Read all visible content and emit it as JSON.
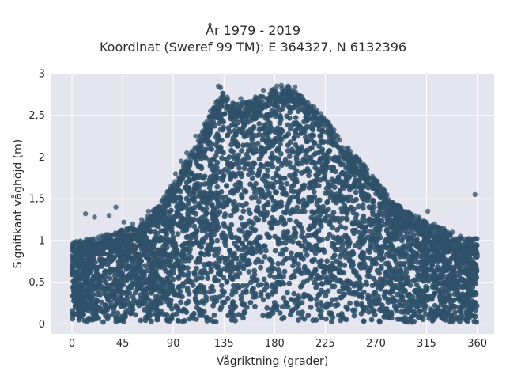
{
  "chart_data": {
    "type": "scatter",
    "title_lines": [
      "År 1979 - 2019",
      "Koordinat (Sweref 99 TM): E 364327, N 6132396"
    ],
    "xlabel": "Vågriktning (grader)",
    "ylabel": "Signifikant våghöjd (m)",
    "xlim": [
      -19,
      375
    ],
    "ylim": [
      -0.12,
      3
    ],
    "x_ticks": [
      0,
      45,
      90,
      135,
      180,
      225,
      270,
      315,
      360
    ],
    "x_tick_labels": [
      "0",
      "45",
      "90",
      "135",
      "180",
      "225",
      "270",
      "315",
      "360"
    ],
    "y_ticks": [
      0,
      0.5,
      1,
      1.5,
      2,
      2.5,
      3
    ],
    "y_tick_labels": [
      "0",
      "0,5",
      "1",
      "1,5",
      "2",
      "2,5",
      "3"
    ],
    "grid": true,
    "colors": {
      "background": "#e5e5ef",
      "grid": "#ffffff",
      "marker": "#2f5069"
    },
    "envelope": [
      {
        "x": 0,
        "y": 0.9
      },
      {
        "x": 20,
        "y": 0.95
      },
      {
        "x": 45,
        "y": 1.05
      },
      {
        "x": 60,
        "y": 1.1
      },
      {
        "x": 80,
        "y": 1.4
      },
      {
        "x": 100,
        "y": 1.85
      },
      {
        "x": 115,
        "y": 2.2
      },
      {
        "x": 125,
        "y": 2.5
      },
      {
        "x": 133,
        "y": 2.7
      },
      {
        "x": 145,
        "y": 2.55
      },
      {
        "x": 160,
        "y": 2.6
      },
      {
        "x": 180,
        "y": 2.75
      },
      {
        "x": 195,
        "y": 2.75
      },
      {
        "x": 210,
        "y": 2.6
      },
      {
        "x": 225,
        "y": 2.4
      },
      {
        "x": 240,
        "y": 2.1
      },
      {
        "x": 255,
        "y": 1.9
      },
      {
        "x": 270,
        "y": 1.65
      },
      {
        "x": 285,
        "y": 1.4
      },
      {
        "x": 300,
        "y": 1.25
      },
      {
        "x": 315,
        "y": 1.15
      },
      {
        "x": 330,
        "y": 1.05
      },
      {
        "x": 345,
        "y": 0.95
      },
      {
        "x": 360,
        "y": 0.95
      }
    ],
    "outliers": [
      {
        "x": 12,
        "y": 1.32
      },
      {
        "x": 20,
        "y": 1.28
      },
      {
        "x": 33,
        "y": 1.3
      },
      {
        "x": 39,
        "y": 1.4
      },
      {
        "x": 46,
        "y": 1.22
      },
      {
        "x": 54,
        "y": 1.2
      },
      {
        "x": 62,
        "y": 1.25
      },
      {
        "x": 68,
        "y": 1.35
      },
      {
        "x": 76,
        "y": 1.4
      },
      {
        "x": 84,
        "y": 1.5
      },
      {
        "x": 88,
        "y": 1.65
      },
      {
        "x": 92,
        "y": 1.8
      },
      {
        "x": 97,
        "y": 1.95
      },
      {
        "x": 102,
        "y": 2.05
      },
      {
        "x": 110,
        "y": 2.25
      },
      {
        "x": 118,
        "y": 2.4
      },
      {
        "x": 123,
        "y": 2.55
      },
      {
        "x": 128,
        "y": 2.65
      },
      {
        "x": 130,
        "y": 2.85
      },
      {
        "x": 132,
        "y": 2.83
      },
      {
        "x": 136,
        "y": 2.6
      },
      {
        "x": 150,
        "y": 2.7
      },
      {
        "x": 156,
        "y": 2.65
      },
      {
        "x": 163,
        "y": 2.72
      },
      {
        "x": 170,
        "y": 2.8
      },
      {
        "x": 176,
        "y": 2.76
      },
      {
        "x": 182,
        "y": 2.85
      },
      {
        "x": 186,
        "y": 2.86
      },
      {
        "x": 192,
        "y": 2.85
      },
      {
        "x": 198,
        "y": 2.84
      },
      {
        "x": 202,
        "y": 2.7
      },
      {
        "x": 208,
        "y": 2.66
      },
      {
        "x": 215,
        "y": 2.6
      },
      {
        "x": 222,
        "y": 2.45
      },
      {
        "x": 230,
        "y": 2.35
      },
      {
        "x": 236,
        "y": 2.25
      },
      {
        "x": 244,
        "y": 2.1
      },
      {
        "x": 252,
        "y": 1.95
      },
      {
        "x": 260,
        "y": 1.85
      },
      {
        "x": 266,
        "y": 1.75
      },
      {
        "x": 272,
        "y": 1.65
      },
      {
        "x": 278,
        "y": 1.55
      },
      {
        "x": 285,
        "y": 1.45
      },
      {
        "x": 292,
        "y": 1.38
      },
      {
        "x": 300,
        "y": 1.3
      },
      {
        "x": 308,
        "y": 1.28
      },
      {
        "x": 316,
        "y": 1.35
      },
      {
        "x": 322,
        "y": 1.2
      },
      {
        "x": 330,
        "y": 1.15
      },
      {
        "x": 338,
        "y": 1.1
      },
      {
        "x": 345,
        "y": 1.05
      },
      {
        "x": 352,
        "y": 1.0
      },
      {
        "x": 358,
        "y": 1.55
      }
    ]
  }
}
